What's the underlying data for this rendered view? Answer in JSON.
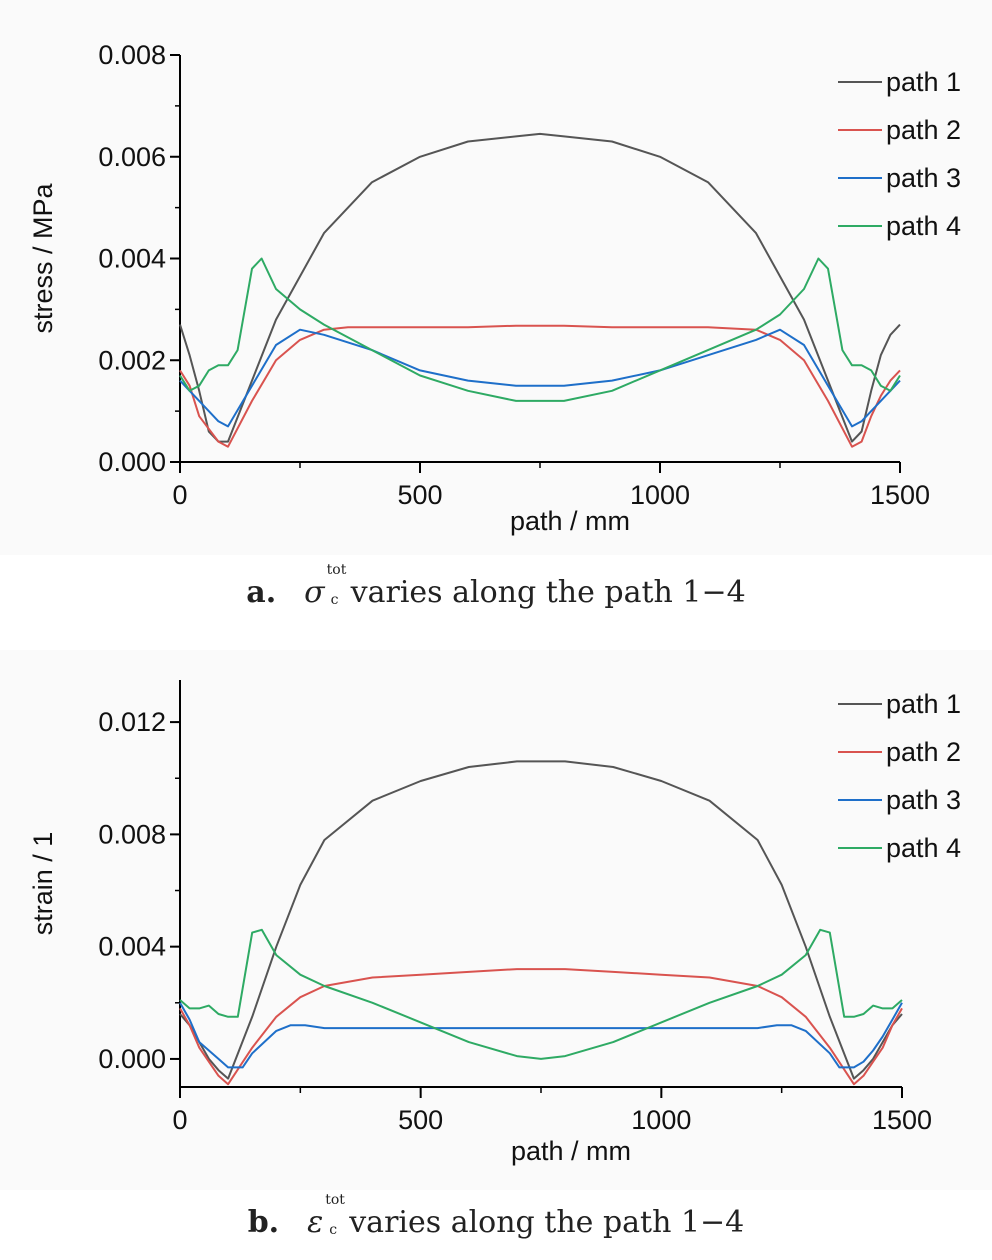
{
  "chart_data": [
    {
      "type": "line",
      "caption": {
        "label": "a.",
        "symbol": "σ",
        "superscript": "tot",
        "subscript": "c",
        "text": "varies along the path 1−4"
      },
      "xlabel": "path / mm",
      "ylabel": "stress / MPa",
      "xlim": [
        0,
        1500
      ],
      "ylim": [
        0,
        0.008
      ],
      "x_ticks": [
        "0",
        "500",
        "1000",
        "1500"
      ],
      "y_ticks": [
        "0.000",
        "0.002",
        "0.004",
        "0.006",
        "0.008"
      ],
      "legend_position": "top-right",
      "series": [
        {
          "name": "path 1",
          "color": "#555555",
          "x": [
            0,
            20,
            40,
            60,
            80,
            100,
            150,
            200,
            300,
            400,
            500,
            600,
            700,
            750,
            800,
            900,
            1000,
            1100,
            1200,
            1300,
            1350,
            1400,
            1420,
            1440,
            1460,
            1480,
            1500
          ],
          "y": [
            0.0027,
            0.0021,
            0.0014,
            0.0006,
            0.0004,
            0.0004,
            0.0016,
            0.0028,
            0.0045,
            0.0055,
            0.006,
            0.0063,
            0.0064,
            0.00645,
            0.0064,
            0.0063,
            0.006,
            0.0055,
            0.0045,
            0.0028,
            0.0016,
            0.0004,
            0.0006,
            0.0014,
            0.0021,
            0.0025,
            0.0027
          ]
        },
        {
          "name": "path 2",
          "color": "#d9534f",
          "x": [
            0,
            20,
            40,
            80,
            100,
            150,
            200,
            250,
            300,
            350,
            400,
            500,
            600,
            700,
            750,
            800,
            900,
            1000,
            1100,
            1200,
            1250,
            1300,
            1350,
            1400,
            1420,
            1440,
            1460,
            1480,
            1500
          ],
          "y": [
            0.0018,
            0.0015,
            0.0009,
            0.0004,
            0.0003,
            0.0012,
            0.002,
            0.0024,
            0.0026,
            0.00265,
            0.00265,
            0.00265,
            0.00265,
            0.00268,
            0.00268,
            0.00268,
            0.00265,
            0.00265,
            0.00265,
            0.0026,
            0.0024,
            0.002,
            0.0012,
            0.0003,
            0.0004,
            0.0009,
            0.0013,
            0.0016,
            0.0018
          ]
        },
        {
          "name": "path 3",
          "color": "#1e6fc9",
          "x": [
            0,
            20,
            40,
            80,
            100,
            150,
            200,
            250,
            300,
            400,
            500,
            600,
            700,
            750,
            800,
            900,
            1000,
            1100,
            1200,
            1250,
            1300,
            1350,
            1400,
            1420,
            1440,
            1460,
            1480,
            1500
          ],
          "y": [
            0.0016,
            0.0014,
            0.0012,
            0.0008,
            0.0007,
            0.0015,
            0.0023,
            0.0026,
            0.0025,
            0.0022,
            0.0018,
            0.0016,
            0.0015,
            0.0015,
            0.0015,
            0.0016,
            0.0018,
            0.0021,
            0.0024,
            0.0026,
            0.0023,
            0.0015,
            0.0007,
            0.0008,
            0.001,
            0.0012,
            0.0014,
            0.0016
          ]
        },
        {
          "name": "path 4",
          "color": "#2eaa64",
          "x": [
            0,
            20,
            40,
            60,
            80,
            100,
            120,
            150,
            170,
            200,
            250,
            300,
            400,
            500,
            600,
            700,
            750,
            800,
            900,
            1000,
            1100,
            1200,
            1250,
            1300,
            1330,
            1350,
            1380,
            1400,
            1420,
            1440,
            1460,
            1480,
            1500
          ],
          "y": [
            0.0017,
            0.0014,
            0.0015,
            0.0018,
            0.0019,
            0.0019,
            0.0022,
            0.0038,
            0.004,
            0.0034,
            0.003,
            0.0027,
            0.0022,
            0.0017,
            0.0014,
            0.0012,
            0.0012,
            0.0012,
            0.0014,
            0.0018,
            0.0022,
            0.0026,
            0.0029,
            0.0034,
            0.004,
            0.0038,
            0.0022,
            0.0019,
            0.0019,
            0.0018,
            0.0015,
            0.0014,
            0.0017
          ]
        }
      ]
    },
    {
      "type": "line",
      "caption": {
        "label": "b.",
        "symbol": "ε",
        "superscript": "tot",
        "subscript": "c",
        "text": "varies along the path 1−4"
      },
      "xlabel": "path / mm",
      "ylabel": "strain / 1",
      "xlim": [
        0,
        1500
      ],
      "ylim": [
        -0.001,
        0.0135
      ],
      "x_ticks": [
        "0",
        "500",
        "1000",
        "1500"
      ],
      "y_ticks": [
        "0.000",
        "0.004",
        "0.008",
        "0.012"
      ],
      "legend_position": "top-right",
      "series": [
        {
          "name": "path 1",
          "color": "#555555",
          "x": [
            0,
            20,
            40,
            60,
            80,
            100,
            150,
            200,
            250,
            300,
            400,
            500,
            600,
            700,
            750,
            800,
            900,
            1000,
            1100,
            1200,
            1250,
            1300,
            1350,
            1400,
            1420,
            1440,
            1460,
            1480,
            1500
          ],
          "y": [
            0.0016,
            0.0012,
            0.0006,
            0.0,
            -0.0004,
            -0.0007,
            0.0015,
            0.004,
            0.0062,
            0.0078,
            0.0092,
            0.0099,
            0.0104,
            0.0106,
            0.0106,
            0.0106,
            0.0104,
            0.0099,
            0.0092,
            0.0078,
            0.0062,
            0.004,
            0.0015,
            -0.0007,
            -0.0004,
            0.0,
            0.0006,
            0.0012,
            0.0016
          ]
        },
        {
          "name": "path 2",
          "color": "#d9534f",
          "x": [
            0,
            20,
            40,
            80,
            100,
            150,
            200,
            250,
            300,
            400,
            500,
            600,
            700,
            750,
            800,
            900,
            1000,
            1100,
            1200,
            1250,
            1300,
            1350,
            1400,
            1420,
            1440,
            1460,
            1480,
            1500
          ],
          "y": [
            0.0018,
            0.0012,
            0.0004,
            -0.0006,
            -0.0009,
            0.0004,
            0.0015,
            0.0022,
            0.0026,
            0.0029,
            0.003,
            0.0031,
            0.0032,
            0.0032,
            0.0032,
            0.0031,
            0.003,
            0.0029,
            0.0026,
            0.0022,
            0.0015,
            0.0004,
            -0.0009,
            -0.0006,
            -0.0001,
            0.0004,
            0.0012,
            0.0018
          ]
        },
        {
          "name": "path 3",
          "color": "#1e6fc9",
          "x": [
            0,
            20,
            40,
            80,
            100,
            130,
            150,
            200,
            230,
            260,
            300,
            400,
            500,
            600,
            700,
            750,
            800,
            900,
            1000,
            1100,
            1200,
            1240,
            1270,
            1300,
            1350,
            1370,
            1400,
            1420,
            1440,
            1460,
            1480,
            1500
          ],
          "y": [
            0.002,
            0.0014,
            0.0006,
            0.0,
            -0.0003,
            -0.0003,
            0.0002,
            0.001,
            0.0012,
            0.0012,
            0.0011,
            0.0011,
            0.0011,
            0.0011,
            0.0011,
            0.0011,
            0.0011,
            0.0011,
            0.0011,
            0.0011,
            0.0011,
            0.0012,
            0.0012,
            0.001,
            0.0002,
            -0.0003,
            -0.0003,
            -0.0001,
            0.0003,
            0.0008,
            0.0014,
            0.002
          ]
        },
        {
          "name": "path 4",
          "color": "#2eaa64",
          "x": [
            0,
            20,
            40,
            60,
            80,
            100,
            120,
            150,
            170,
            200,
            250,
            300,
            400,
            500,
            600,
            700,
            750,
            800,
            900,
            1000,
            1100,
            1200,
            1250,
            1300,
            1330,
            1350,
            1380,
            1400,
            1420,
            1440,
            1460,
            1480,
            1500
          ],
          "y": [
            0.0021,
            0.0018,
            0.0018,
            0.0019,
            0.0016,
            0.0015,
            0.0015,
            0.0045,
            0.0046,
            0.0037,
            0.003,
            0.0026,
            0.002,
            0.0013,
            0.0006,
            0.0001,
            0.0,
            0.0001,
            0.0006,
            0.0013,
            0.002,
            0.0026,
            0.003,
            0.0037,
            0.0046,
            0.0045,
            0.0015,
            0.0015,
            0.0016,
            0.0019,
            0.0018,
            0.0018,
            0.0021
          ]
        }
      ]
    }
  ]
}
